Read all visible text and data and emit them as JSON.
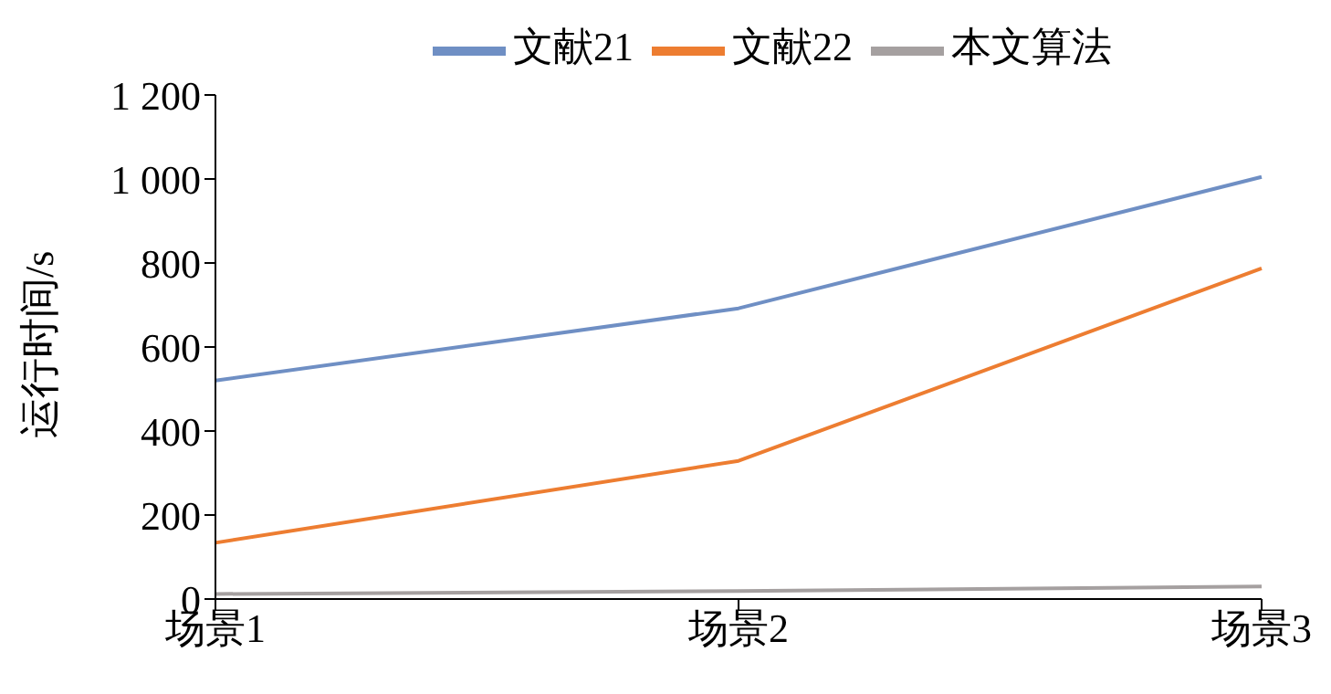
{
  "chart_data": {
    "type": "line",
    "ylabel": "运行时间/s",
    "categories": [
      "场景1",
      "场景2",
      "场景3"
    ],
    "series": [
      {
        "name": "文献21",
        "color": "#6f8fc4",
        "values": [
          520,
          692,
          1005
        ]
      },
      {
        "name": "文献22",
        "color": "#ed7d31",
        "values": [
          134,
          329,
          787
        ]
      },
      {
        "name": "本文算法",
        "color": "#a5a0a0",
        "values": [
          12,
          19,
          30
        ]
      }
    ],
    "ylim": [
      0,
      1200
    ],
    "yticks": [
      0,
      200,
      400,
      600,
      800,
      {
        "value": 1000,
        "label": "1 000"
      },
      {
        "value": 1200,
        "label": "1 200"
      }
    ],
    "grid": false,
    "legend": "top",
    "marker": "none",
    "line_style": "solid"
  }
}
